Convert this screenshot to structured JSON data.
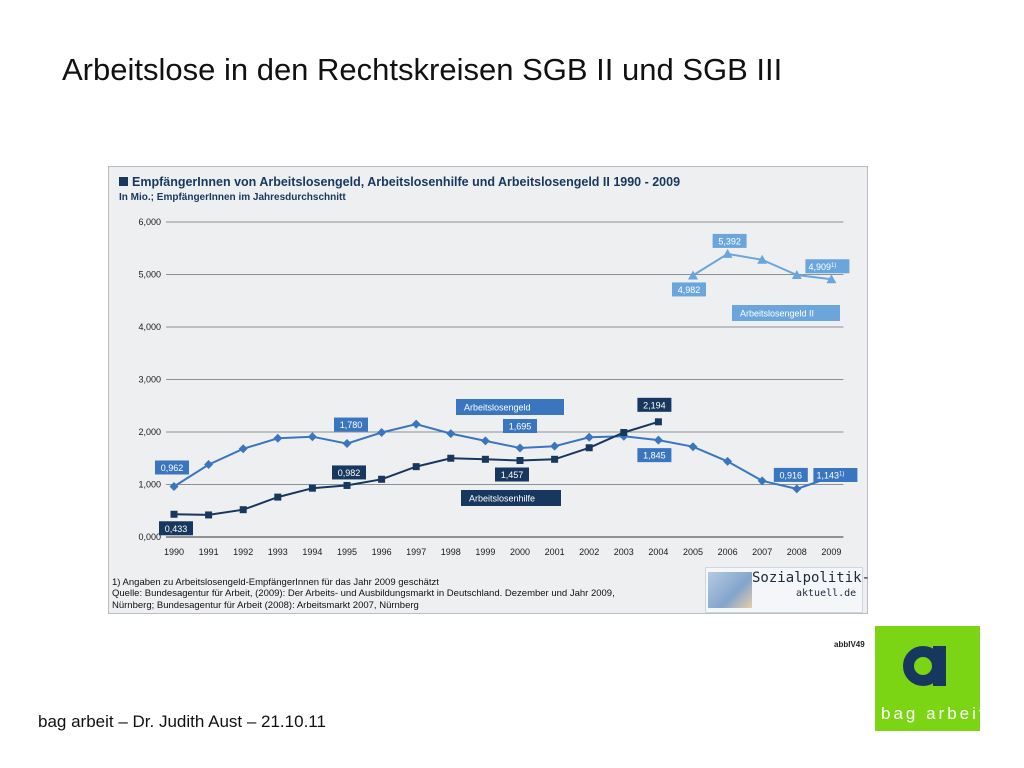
{
  "slide": {
    "title": "Arbeitslose in den Rechtskreisen SGB II und SGB III",
    "footer": "bag arbeit – Dr. Judith Aust – 21.10.11",
    "figure_code": "abbIV49",
    "bag_logo_letter": "a",
    "bag_logo_text": "bag arbeit"
  },
  "logo": {
    "text1": "Sozialpolitik-",
    "text2": "aktuell.de"
  },
  "footnote": {
    "line1": "1) Angaben zu Arbeitslosengeld-EmpfängerInnen für das Jahr 2009 geschätzt",
    "line2": "Quelle: Bundesagentur für Arbeit, (2009): Der Arbeits- und Ausbildungsmarkt in Deutschland. Dezember und Jahr 2009, Nürnberg; Bundesagentur für Arbeit (2008): Arbeitsmarkt 2007, Nürnberg"
  },
  "colors": {
    "alg": "#3a76c0",
    "alh": "#17375e",
    "alg2": "#6aa6dc",
    "bag_green": "#7bd414"
  },
  "chart_data": {
    "type": "line",
    "title": "EmpfängerInnen von Arbeitslosengeld, Arbeitslosenhilfe und Arbeitslosengeld II 1990 - 2009",
    "subtitle": "In Mio.; EmpfängerInnen im Jahresdurchschnitt",
    "x": [
      "1990",
      "1991",
      "1992",
      "1993",
      "1994",
      "1995",
      "1996",
      "1997",
      "1998",
      "1999",
      "2000",
      "2001",
      "2002",
      "2003",
      "2004",
      "2005",
      "2006",
      "2007",
      "2008",
      "2009"
    ],
    "ylim": [
      0,
      6
    ],
    "yticks": [
      "0,000",
      "1,000",
      "2,000",
      "3,000",
      "4,000",
      "5,000",
      "6,000"
    ],
    "grid": true,
    "series": [
      {
        "name": "Arbeitslosengeld",
        "color": "#3a76c0",
        "marker": "diamond",
        "values": [
          0.962,
          1.38,
          1.68,
          1.88,
          1.91,
          1.78,
          1.99,
          2.15,
          1.97,
          1.83,
          1.695,
          1.73,
          1.9,
          1.92,
          1.845,
          1.72,
          1.44,
          1.07,
          0.916,
          1.143
        ]
      },
      {
        "name": "Arbeitslosenhilfe",
        "color": "#17375e",
        "marker": "square",
        "values": [
          0.433,
          0.42,
          0.52,
          0.76,
          0.93,
          0.982,
          1.1,
          1.34,
          1.5,
          1.48,
          1.457,
          1.48,
          1.7,
          1.99,
          2.194,
          null,
          null,
          null,
          null,
          null
        ]
      },
      {
        "name": "Arbeitslosengeld II",
        "color": "#6aa6dc",
        "marker": "triangle",
        "values": [
          null,
          null,
          null,
          null,
          null,
          null,
          null,
          null,
          null,
          null,
          null,
          null,
          null,
          null,
          null,
          4.982,
          5.392,
          5.28,
          4.99,
          4.909
        ]
      }
    ],
    "annotations": [
      {
        "series": 0,
        "index": 0,
        "text": "0,962",
        "sup": ""
      },
      {
        "series": 0,
        "index": 5,
        "text": "1,780",
        "sup": ""
      },
      {
        "series": 0,
        "index": 10,
        "text": "1,695",
        "sup": ""
      },
      {
        "series": 0,
        "index": 14,
        "text": "1,845",
        "sup": ""
      },
      {
        "series": 0,
        "index": 18,
        "text": "0,916",
        "sup": ""
      },
      {
        "series": 0,
        "index": 19,
        "text": "1,143",
        "sup": "1)"
      },
      {
        "series": 1,
        "index": 0,
        "text": "0,433",
        "sup": ""
      },
      {
        "series": 1,
        "index": 5,
        "text": "0,982",
        "sup": ""
      },
      {
        "series": 1,
        "index": 10,
        "text": "1,457",
        "sup": ""
      },
      {
        "series": 1,
        "index": 14,
        "text": "2,194",
        "sup": ""
      },
      {
        "series": 2,
        "index": 15,
        "text": "4,982",
        "sup": ""
      },
      {
        "series": 2,
        "index": 16,
        "text": "5,392",
        "sup": ""
      },
      {
        "series": 2,
        "index": 19,
        "text": "4,909",
        "sup": "1)"
      }
    ]
  }
}
